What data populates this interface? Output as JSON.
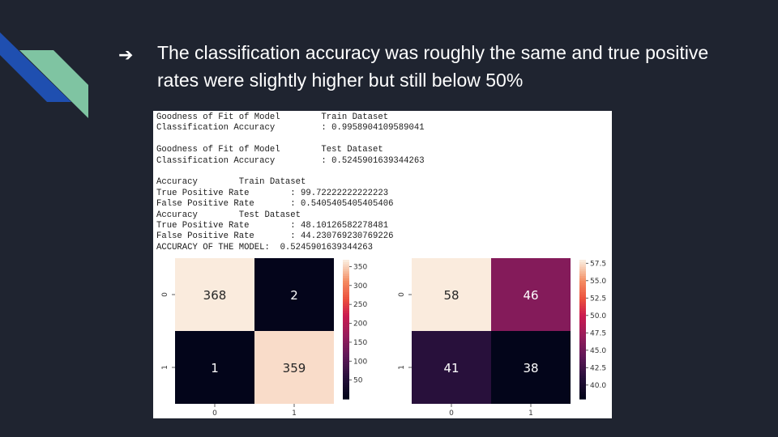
{
  "slide": {
    "bullet_symbol": "➔",
    "bullet_text": "The classification accuracy was roughly the same and true positive rates were slightly higher but still below 50%",
    "colors": {
      "background": "#1f2430",
      "accent_blue": "#1f4fb0",
      "accent_green": "#7fc4a2",
      "text": "#ffffff"
    }
  },
  "console": {
    "lines": [
      "Goodness of Fit of Model        Train Dataset",
      "Classification Accuracy         : 0.9958904109589041",
      "",
      "Goodness of Fit of Model        Test Dataset",
      "Classification Accuracy         : 0.5245901639344263",
      "",
      "Accuracy        Train Dataset",
      "True Positive Rate        : 99.72222222222223",
      "False Positive Rate       : 0.5405405405405406",
      "Accuracy        Test Dataset",
      "True Positive Rate        : 48.10126582278481",
      "False Positive Rate       : 44.230769230769226",
      "ACCURACY OF THE MODEL:  0.5245901639344263"
    ]
  },
  "chart_data": [
    {
      "type": "heatmap",
      "title": "",
      "x_tick_labels": [
        "0",
        "1"
      ],
      "y_tick_labels": [
        "0",
        "1"
      ],
      "values": [
        [
          368,
          2
        ],
        [
          1,
          359
        ]
      ],
      "annotations": [
        [
          "368",
          "2"
        ],
        [
          "1",
          "359"
        ]
      ],
      "colorbar": {
        "range": [
          0,
          368
        ],
        "ticks": [
          50,
          100,
          150,
          200,
          250,
          300,
          350
        ]
      },
      "colormap": "rocket"
    },
    {
      "type": "heatmap",
      "title": "",
      "x_tick_labels": [
        "0",
        "1"
      ],
      "y_tick_labels": [
        "0",
        "1"
      ],
      "values": [
        [
          58,
          46
        ],
        [
          41,
          38
        ]
      ],
      "annotations": [
        [
          "58",
          "46"
        ],
        [
          "41",
          "38"
        ]
      ],
      "colorbar": {
        "range": [
          38,
          58
        ],
        "ticks": [
          "40.0",
          "42.5",
          "45.0",
          "47.5",
          "50.0",
          "52.5",
          "55.0",
          "57.5"
        ]
      },
      "colormap": "rocket"
    }
  ]
}
